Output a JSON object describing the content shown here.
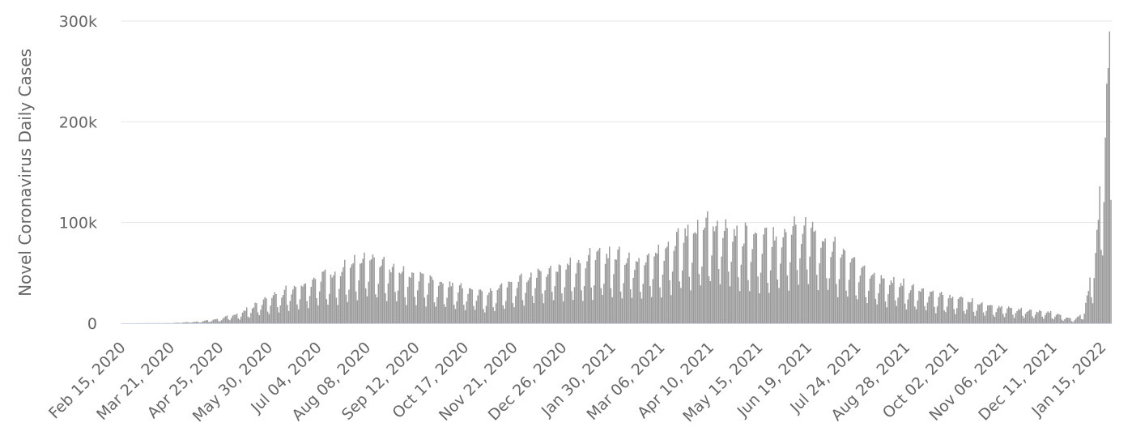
{
  "chart_data": {
    "type": "bar",
    "ylabel": "Novel Coronavirus Daily Cases",
    "ylim": [
      0,
      300000
    ],
    "y_ticks": [
      0,
      100000,
      200000,
      300000
    ],
    "y_tick_labels": [
      "0",
      "100k",
      "200k",
      "300k"
    ],
    "x_tick_labels": [
      "Feb 15, 2020",
      "Mar 21, 2020",
      "Apr 25, 2020",
      "May 30, 2020",
      "Jul 04, 2020",
      "Aug 08, 2020",
      "Sep 12, 2020",
      "Oct 17, 2020",
      "Nov 21, 2020",
      "Dec 26, 2020",
      "Jan 30, 2021",
      "Mar 06, 2021",
      "Apr 10, 2021",
      "May 15, 2021",
      "Jun 19, 2021",
      "Jul 24, 2021",
      "Aug 28, 2021",
      "Oct 02, 2021",
      "Nov 06, 2021",
      "Dec 11, 2021",
      "Jan 15, 2022"
    ],
    "x_start": "Feb 15, 2020",
    "x_end": "Jan 21, 2022",
    "grid": true,
    "color": "#999999",
    "profile_points": [
      [
        "Feb 15, 2020",
        0
      ],
      [
        "Mar 21, 2020",
        200
      ],
      [
        "Apr 10, 2020",
        1500
      ],
      [
        "Apr 25, 2020",
        4000
      ],
      [
        "May 10, 2020",
        9000
      ],
      [
        "May 30, 2020",
        22000
      ],
      [
        "Jun 15, 2020",
        30000
      ],
      [
        "Jul 04, 2020",
        40000
      ],
      [
        "Jul 20, 2020",
        45000
      ],
      [
        "Aug 08, 2020",
        55000
      ],
      [
        "Aug 20, 2020",
        50000
      ],
      [
        "Sep 12, 2020",
        42000
      ],
      [
        "Oct 01, 2020",
        35000
      ],
      [
        "Oct 17, 2020",
        30000
      ],
      [
        "Nov 01, 2020",
        25000
      ],
      [
        "Nov 21, 2020",
        35000
      ],
      [
        "Dec 10, 2020",
        45000
      ],
      [
        "Dec 26, 2020",
        50000
      ],
      [
        "Jan 15, 2021",
        55000
      ],
      [
        "Jan 30, 2021",
        60000
      ],
      [
        "Feb 15, 2021",
        55000
      ],
      [
        "Mar 06, 2021",
        60000
      ],
      [
        "Mar 25, 2021",
        80000
      ],
      [
        "Apr 10, 2021",
        85000
      ],
      [
        "Apr 25, 2021",
        80000
      ],
      [
        "May 15, 2021",
        72000
      ],
      [
        "Jun 01, 2021",
        78000
      ],
      [
        "Jun 19, 2021",
        85000
      ],
      [
        "Jul 05, 2021",
        65000
      ],
      [
        "Jul 24, 2021",
        50000
      ],
      [
        "Aug 10, 2021",
        40000
      ],
      [
        "Aug 28, 2021",
        32000
      ],
      [
        "Sep 15, 2021",
        25000
      ],
      [
        "Oct 02, 2021",
        22000
      ],
      [
        "Oct 20, 2021",
        17000
      ],
      [
        "Nov 06, 2021",
        14000
      ],
      [
        "Nov 25, 2021",
        11000
      ],
      [
        "Dec 11, 2021",
        9000
      ],
      [
        "Dec 25, 2021",
        3000
      ],
      [
        "Jan 01, 2022",
        8000
      ],
      [
        "Jan 08, 2022",
        45000
      ],
      [
        "Jan 12, 2022",
        90000
      ],
      [
        "Jan 15, 2022",
        150000
      ],
      [
        "Jan 18, 2022",
        190000
      ],
      [
        "Jan 21, 2022",
        225000
      ]
    ]
  }
}
